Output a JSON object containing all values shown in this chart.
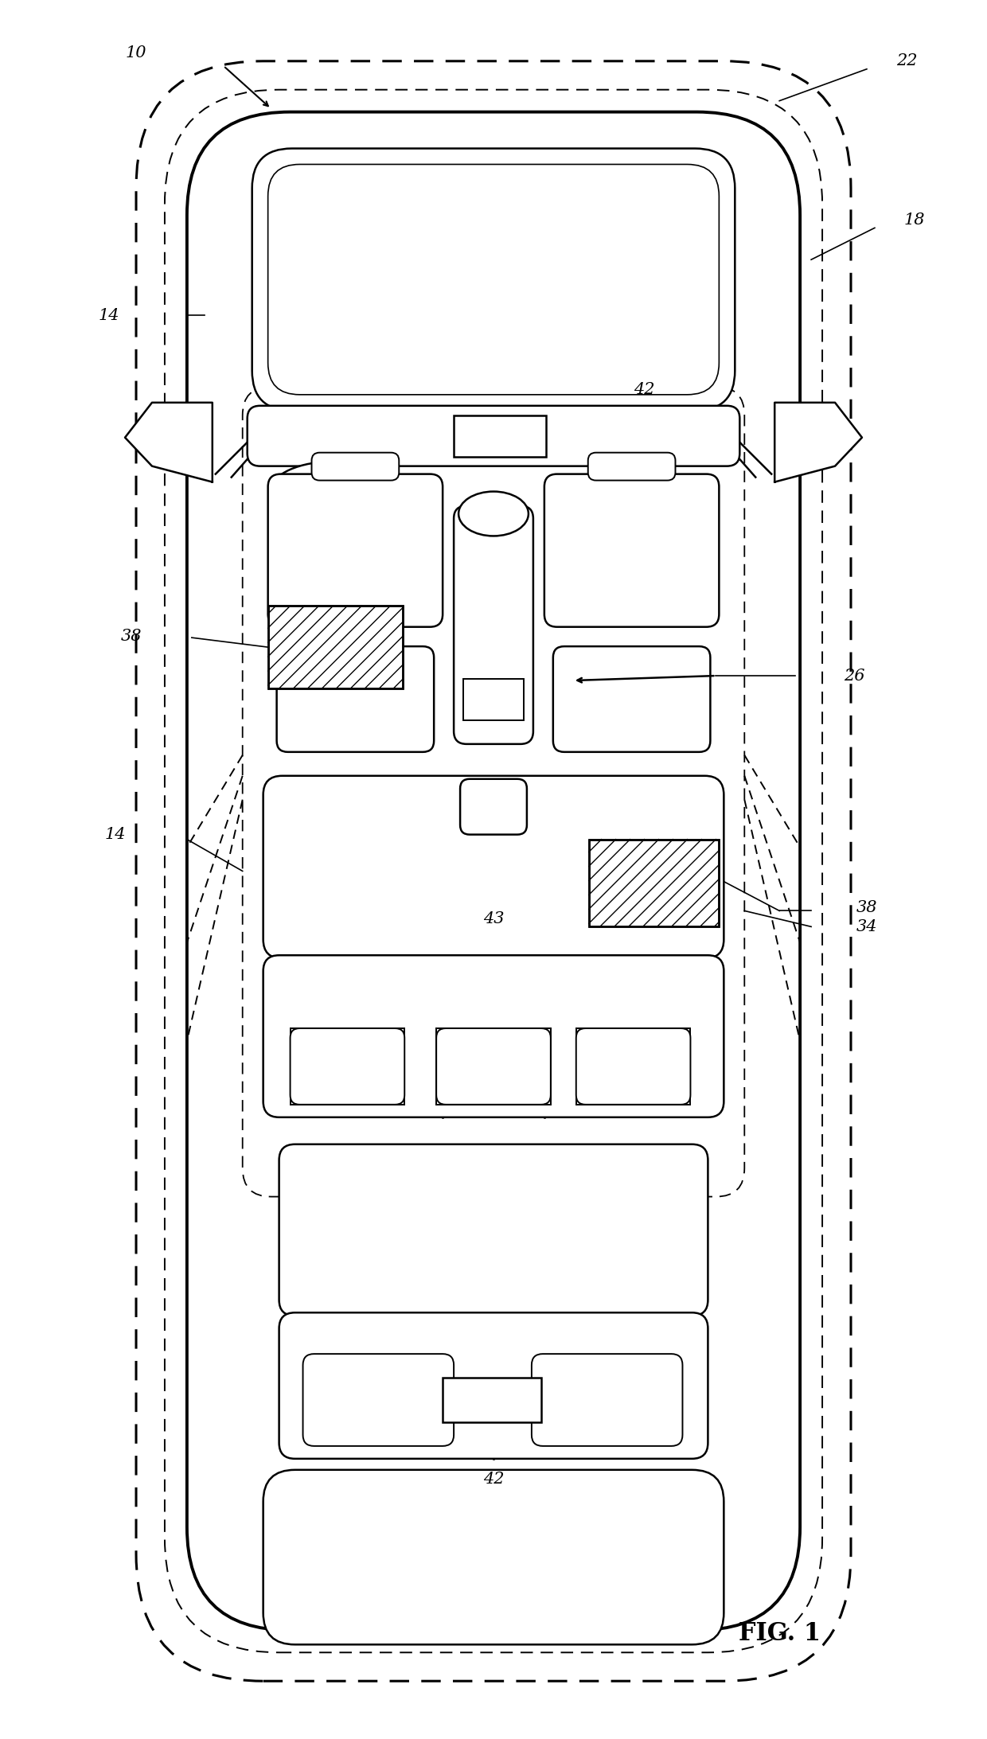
{
  "background_color": "#ffffff",
  "line_color": "#000000",
  "fig_width": 12.4,
  "fig_height": 21.85,
  "label_fontsize": 15,
  "fig1_fontsize": 22
}
